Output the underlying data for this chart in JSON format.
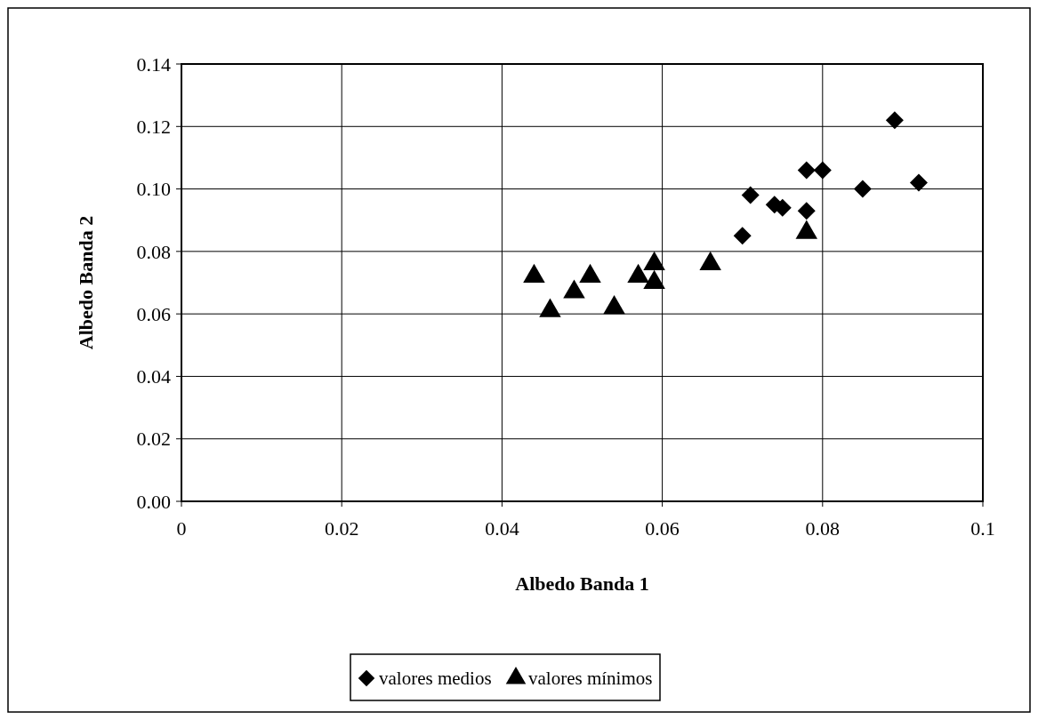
{
  "chart_data": {
    "type": "scatter",
    "xlabel": "Albedo Banda 1",
    "ylabel": "Albedo Banda 2",
    "xlim": [
      0,
      0.1
    ],
    "xticks": [
      0,
      0.02,
      0.04,
      0.06,
      0.08,
      0.1
    ],
    "ylim": [
      0,
      0.14
    ],
    "yticks": [
      {
        "value": 0,
        "label": "0.00"
      },
      {
        "value": 0.02,
        "label": "0.02"
      },
      {
        "value": 0.04,
        "label": "0.04"
      },
      {
        "value": 0.06,
        "label": "0.06"
      },
      {
        "value": 0.08,
        "label": "0.08"
      },
      {
        "value": 0.1,
        "label": "0.10"
      },
      {
        "value": 0.12,
        "label": "0.12"
      },
      {
        "value": 0.14,
        "label": "0.14"
      }
    ],
    "grid": true,
    "legend": "bottom",
    "series": [
      {
        "name": "valores medios",
        "color": "#000000",
        "marker": "diamond",
        "x": [
          0.089,
          0.078,
          0.08,
          0.085,
          0.092,
          0.071,
          0.074,
          0.075,
          0.078,
          0.07
        ],
        "values": [
          0.122,
          0.106,
          0.106,
          0.1,
          0.102,
          0.098,
          0.095,
          0.094,
          0.093,
          0.085
        ]
      },
      {
        "name": "valores mínimos",
        "color": "#000000",
        "marker": "triangle",
        "x": [
          0.078,
          0.066,
          0.059,
          0.059,
          0.057,
          0.051,
          0.044,
          0.049,
          0.046,
          0.054
        ],
        "values": [
          0.086,
          0.076,
          0.076,
          0.07,
          0.072,
          0.072,
          0.072,
          0.067,
          0.061,
          0.062
        ]
      }
    ]
  }
}
